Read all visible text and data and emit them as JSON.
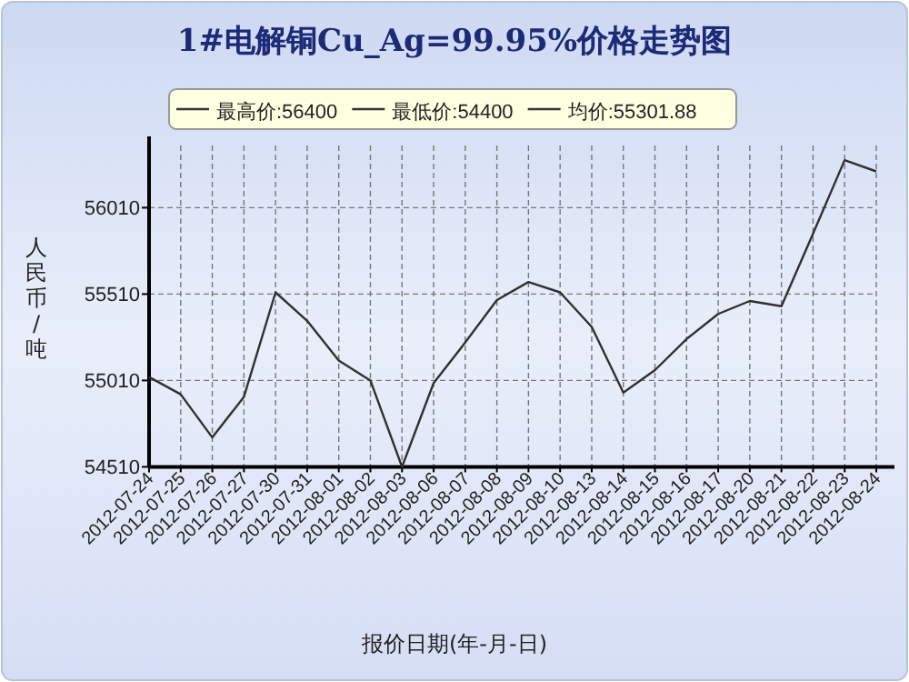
{
  "chart_data": {
    "type": "line",
    "title": "1#电解铜Cu_Ag=99.95%价格走势图",
    "xlabel": "报价日期(年-月-日)",
    "ylabel": "人民币/吨",
    "annotations": [
      "最高价:56400",
      "最低价:54400",
      "均价:55301.88"
    ],
    "categories": [
      "2012-07-24",
      "2012-07-25",
      "2012-07-26",
      "2012-07-27",
      "2012-07-30",
      "2012-07-31",
      "2012-08-01",
      "2012-08-02",
      "2012-08-03",
      "2012-08-06",
      "2012-08-07",
      "2012-08-08",
      "2012-08-09",
      "2012-08-10",
      "2012-08-13",
      "2012-08-14",
      "2012-08-15",
      "2012-08-16",
      "2012-08-17",
      "2012-08-20",
      "2012-08-21",
      "2012-08-22",
      "2012-08-23",
      "2012-08-24"
    ],
    "series": [
      {
        "color": "#303030",
        "values": [
          55030,
          54930,
          54680,
          54915,
          55520,
          55355,
          55125,
          55010,
          54510,
          54995,
          55230,
          55475,
          55580,
          55520,
          55320,
          54940,
          55070,
          55250,
          55395,
          55470,
          55440,
          55860,
          56285,
          56220
        ]
      }
    ],
    "ylim": [
      54510,
      56370
    ],
    "yticks": [
      54510,
      55010,
      55510,
      56010
    ],
    "grid": true,
    "marker": "none",
    "line_style": "solid"
  }
}
